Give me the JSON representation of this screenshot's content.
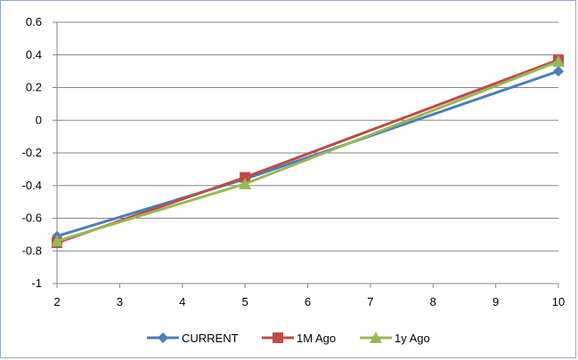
{
  "chart_data": {
    "type": "line",
    "title": "",
    "xlabel": "",
    "ylabel": "",
    "x": [
      2,
      5,
      10
    ],
    "xlim": [
      2,
      10
    ],
    "ylim": [
      -1,
      0.6
    ],
    "x_ticks": [
      2,
      3,
      4,
      5,
      6,
      7,
      8,
      9,
      10
    ],
    "y_ticks": [
      0.6,
      0.4,
      0.2,
      0,
      -0.2,
      -0.4,
      -0.6,
      -0.8,
      -1
    ],
    "x_tick_labels": [
      "2",
      "3",
      "4",
      "5",
      "6",
      "7",
      "8",
      "9",
      "10"
    ],
    "y_tick_labels": [
      "0.6",
      "0.4",
      "0.2",
      "0",
      "-0.2",
      "-0.4",
      "-0.6",
      "-0.8",
      "-1"
    ],
    "grid": "horizontal",
    "legend_position": "bottom",
    "series": [
      {
        "name": "CURRENT",
        "values": [
          -0.71,
          -0.36,
          0.3
        ],
        "color": "#4a7ebb",
        "marker": "diamond"
      },
      {
        "name": "1M Ago",
        "values": [
          -0.75,
          -0.35,
          0.37
        ],
        "color": "#be4b48",
        "marker": "square"
      },
      {
        "name": "1y Ago",
        "values": [
          -0.74,
          -0.39,
          0.36
        ],
        "color": "#98b954",
        "marker": "triangle"
      }
    ]
  }
}
